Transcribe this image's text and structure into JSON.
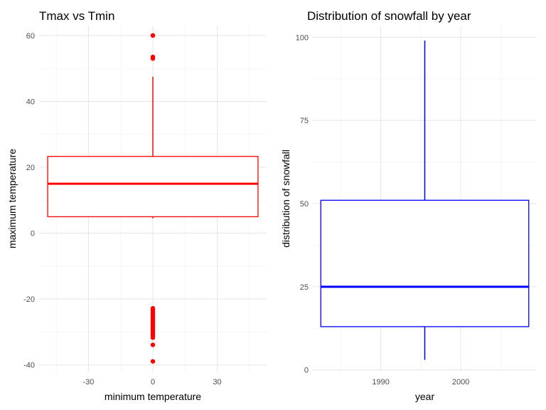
{
  "chart_data": [
    {
      "type": "boxplot",
      "title": "Tmax vs Tmin",
      "xlabel": "minimum temperature",
      "ylabel": "maximum temperature",
      "xlim": [
        -53,
        53
      ],
      "ylim": [
        -42,
        63
      ],
      "x_ticks": [
        -30,
        0,
        30
      ],
      "y_ticks": [
        -40,
        -20,
        0,
        20,
        40,
        60
      ],
      "grid": true,
      "color": "#ff0000",
      "box": {
        "x_center": 0,
        "x_extent": [
          -49,
          49
        ],
        "q1": 5,
        "median": 15,
        "q3": 23.3,
        "whisker_low": 4.5,
        "whisker_high": 47.5
      },
      "outliers": [
        60,
        60,
        53.5,
        53,
        -22.8,
        -23.3,
        -23.8,
        -24.4,
        -25,
        -25.6,
        -26.1,
        -26.7,
        -27.2,
        -27.8,
        -28.3,
        -28.9,
        -29.4,
        -30,
        -30.6,
        -31.1,
        -31.7,
        -33.9,
        -38.9
      ]
    },
    {
      "type": "boxplot",
      "title": "Distribution of snowfall by year",
      "xlabel": "year",
      "ylabel": "distribution of snowfall",
      "xlim": [
        1981.5,
        2009.5
      ],
      "ylim": [
        -0.5,
        103.5
      ],
      "x_ticks": [
        1990,
        2000
      ],
      "y_ticks": [
        0,
        25,
        50,
        75,
        100
      ],
      "grid": true,
      "color": "#0000ff",
      "box": {
        "x_center": 1995.5,
        "x_extent": [
          1982.5,
          2008.5
        ],
        "q1": 13,
        "median": 25,
        "q3": 51,
        "whisker_low": 3,
        "whisker_high": 99
      },
      "outliers": []
    }
  ]
}
